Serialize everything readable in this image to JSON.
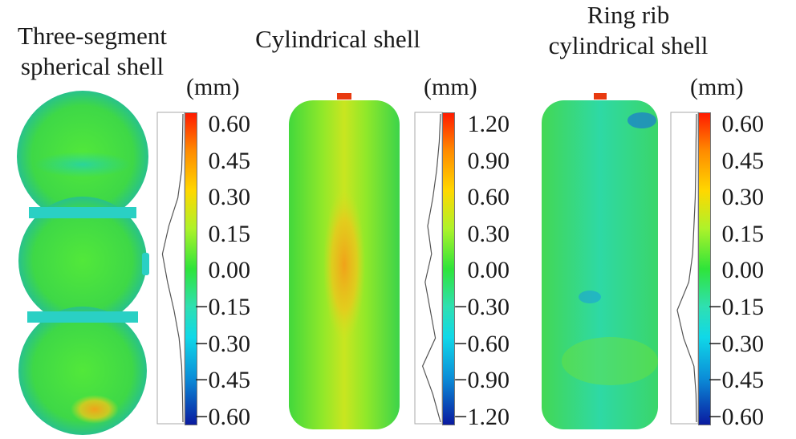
{
  "figure": {
    "panels": [
      {
        "title_lines": [
          "Three-segment",
          "spherical shell"
        ],
        "unit": "(mm)",
        "colorbar_ticks": [
          "0.60",
          "0.45",
          "0.30",
          "0.15",
          "0.00",
          "−0.15",
          "−0.30",
          "−0.45",
          "−0.60"
        ],
        "distribution_curve": [
          0,
          0.02,
          0.05,
          0.2,
          0.55,
          0.8,
          0.6,
          0.35,
          0.15,
          0.05,
          0.02,
          0
        ]
      },
      {
        "title_lines": [
          "Cylindrical shell"
        ],
        "unit": "(mm)",
        "colorbar_ticks": [
          "1.20",
          "0.90",
          "0.60",
          "0.30",
          "0.00",
          "−0.30",
          "−0.60",
          "−0.90",
          "−1.20"
        ],
        "distribution_curve": [
          0,
          0.05,
          0.15,
          0.3,
          0.5,
          0.35,
          0.6,
          0.4,
          0.2,
          0.7,
          0.3,
          0
        ]
      },
      {
        "title_lines": [
          "Ring rib",
          "cylindrical shell"
        ],
        "unit": "(mm)",
        "colorbar_ticks": [
          "0.60",
          "0.45",
          "0.30",
          "0.15",
          "0.00",
          "−0.15",
          "−0.30",
          "−0.45",
          "−0.60"
        ],
        "distribution_curve": [
          0,
          0.02,
          0.03,
          0.05,
          0.1,
          0.15,
          0.3,
          0.75,
          0.5,
          0.1,
          0.02,
          0
        ]
      }
    ],
    "colors": {
      "max": "#ff1a00",
      "high": "#ffd800",
      "mid": "#2fe43a",
      "low": "#10d8e8",
      "min": "#0a1aa0"
    }
  }
}
